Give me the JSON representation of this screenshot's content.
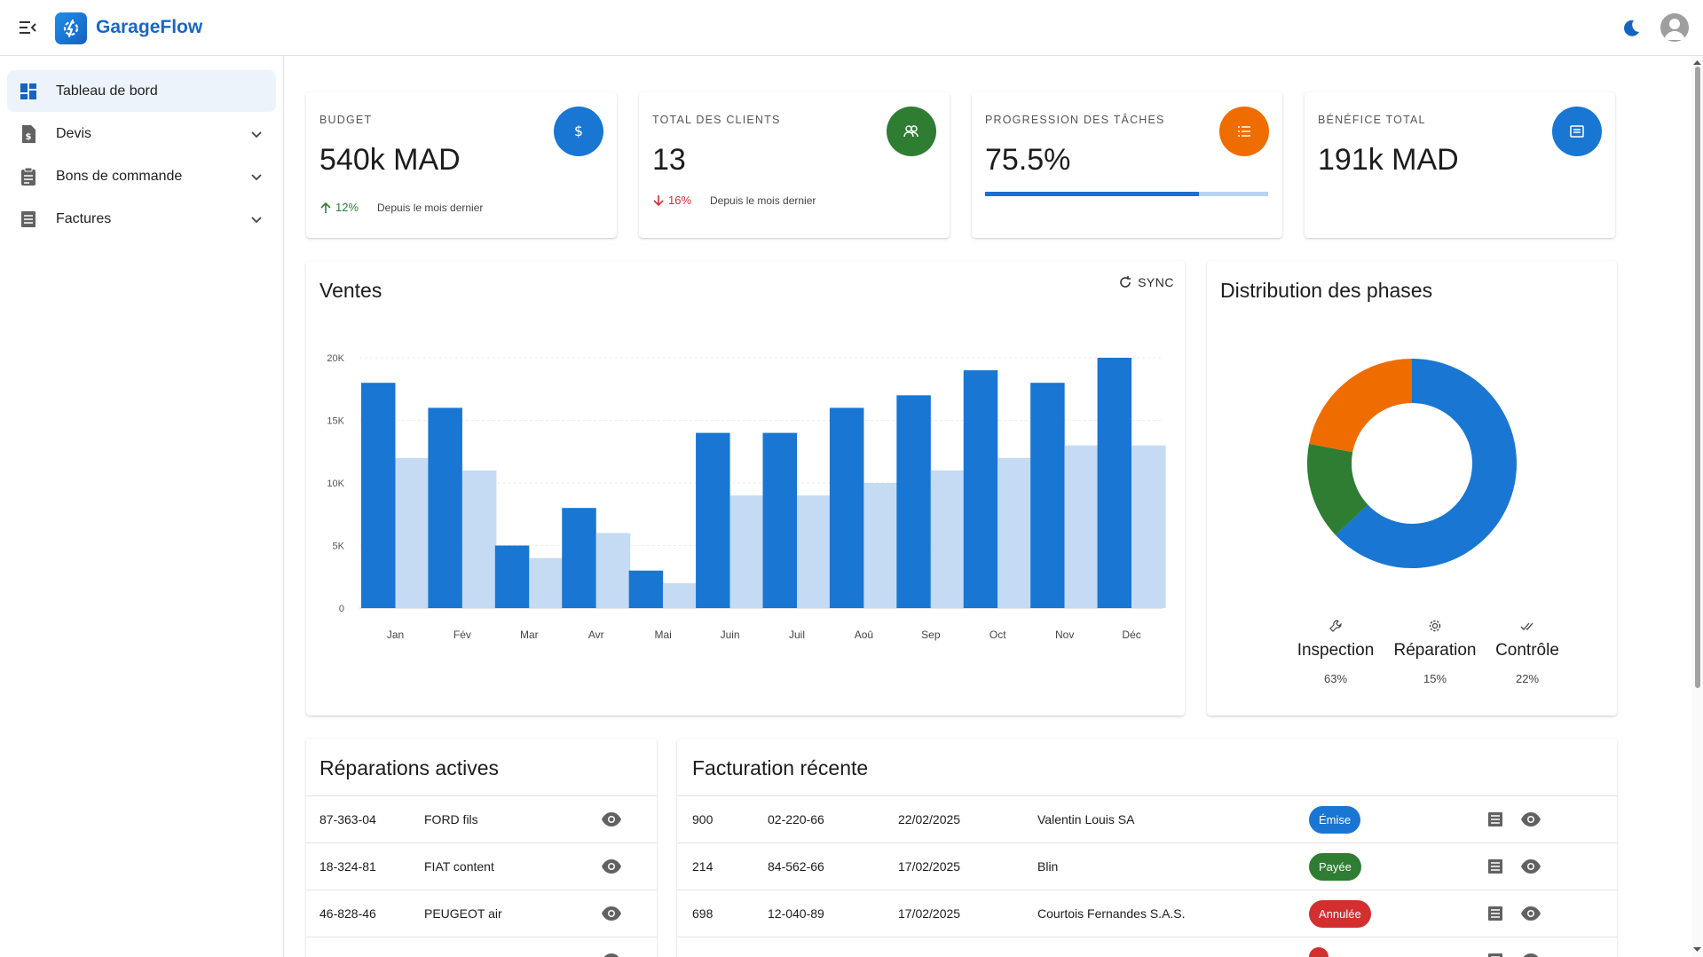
{
  "app": {
    "title": "GarageFlow"
  },
  "sidebar": {
    "items": [
      {
        "label": "Tableau de bord"
      },
      {
        "label": "Devis"
      },
      {
        "label": "Bons de commande"
      },
      {
        "label": "Factures"
      }
    ]
  },
  "stats": [
    {
      "label": "BUDGET",
      "value": "540k MAD",
      "trend": "12%",
      "trend_dir": "up",
      "note": "Depuis le mois dernier",
      "color": "#1976d2",
      "icon": "dollar-icon"
    },
    {
      "label": "TOTAL DES CLIENTS",
      "value": "13",
      "trend": "16%",
      "trend_dir": "down",
      "note": "Depuis le mois dernier",
      "color": "#2e7d32",
      "icon": "users-icon"
    },
    {
      "label": "PROGRESSION DES TÂCHES",
      "value": "75.5%",
      "progress": 0.755,
      "color": "#ef6c00",
      "icon": "list-icon"
    },
    {
      "label": "BÉNÉFICE TOTAL",
      "value": "191k MAD",
      "color": "#1976d2",
      "icon": "receipt-icon"
    }
  ],
  "sales": {
    "title": "Ventes",
    "sync_label": "SYNC",
    "chart_data": {
      "type": "bar",
      "categories": [
        "Jan",
        "Fév",
        "Mar",
        "Avr",
        "Mai",
        "Juin",
        "Juil",
        "Aoû",
        "Sep",
        "Oct",
        "Nov",
        "Déc"
      ],
      "series": [
        {
          "values": [
            18000,
            16000,
            5000,
            8000,
            3000,
            14000,
            14000,
            16000,
            17000,
            19000,
            18000,
            20000
          ],
          "color": "#1976d2"
        },
        {
          "values": [
            12000,
            11000,
            4000,
            6000,
            2000,
            9000,
            9000,
            10000,
            11000,
            12000,
            13000,
            13000
          ],
          "color": "#c5dbf3"
        }
      ],
      "yticks": [
        "0",
        "5K",
        "10K",
        "15K",
        "20K"
      ],
      "ylim": [
        0,
        20000
      ],
      "grid": true
    }
  },
  "phases": {
    "title": "Distribution des phases",
    "chart_data": {
      "type": "pie",
      "categories": [
        "Inspection",
        "Réparation",
        "Contrôle"
      ],
      "values": [
        63,
        15,
        22
      ],
      "colors": [
        "#1976d2",
        "#2e7d32",
        "#ef6c00"
      ]
    },
    "legend": [
      {
        "name": "Inspection",
        "pct": "63%",
        "icon": "wrench-icon"
      },
      {
        "name": "Réparation",
        "pct": "15%",
        "icon": "gear-icon"
      },
      {
        "name": "Contrôle",
        "pct": "22%",
        "icon": "double-check-icon"
      }
    ]
  },
  "repairs": {
    "title": "Réparations actives",
    "rows": [
      {
        "plate": "87-363-04",
        "vehicle": "FORD fils"
      },
      {
        "plate": "18-324-81",
        "vehicle": "FIAT content"
      },
      {
        "plate": "46-828-46",
        "vehicle": "PEUGEOT air"
      },
      {
        "plate": "",
        "vehicle": ""
      }
    ]
  },
  "billing": {
    "title": "Facturation récente",
    "rows": [
      {
        "number": "900",
        "ref": "02-220-66",
        "date": "22/02/2025",
        "client": "Valentin Louis SA",
        "status": "Émise",
        "status_color": "#1976d2"
      },
      {
        "number": "214",
        "ref": "84-562-66",
        "date": "17/02/2025",
        "client": "Blin",
        "status": "Payée",
        "status_color": "#2e7d32"
      },
      {
        "number": "698",
        "ref": "12-040-89",
        "date": "17/02/2025",
        "client": "Courtois Fernandes S.A.S.",
        "status": "Annulée",
        "status_color": "#d32f2f"
      },
      {
        "number": "",
        "ref": "",
        "date": "",
        "client": "",
        "status": "",
        "status_color": "#d32f2f"
      }
    ]
  }
}
